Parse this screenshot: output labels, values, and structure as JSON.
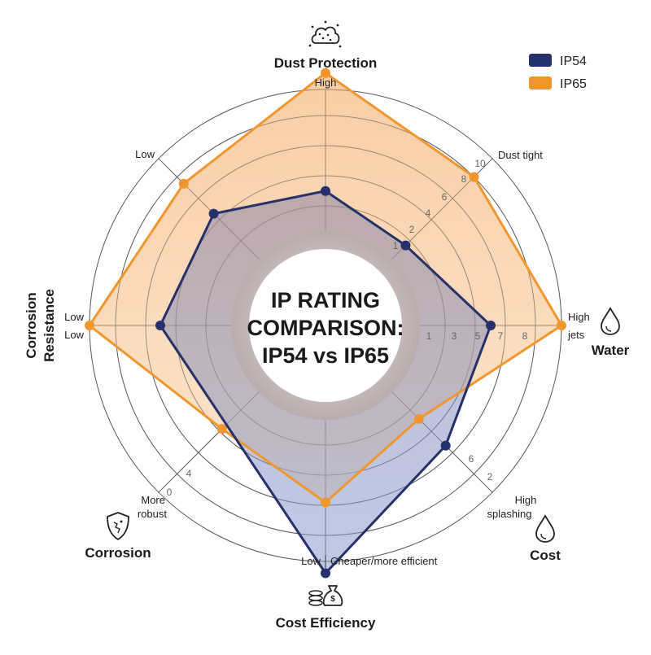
{
  "chart_data": {
    "type": "radar",
    "title_lines": [
      "IP RATING",
      "COMPARISON:",
      "IP54 vs IP65"
    ],
    "rings": 5,
    "axes": [
      {
        "key": "dust",
        "title_lines": [
          "Dust Protection"
        ],
        "icon": "dust-cloud-icon"
      },
      {
        "key": "water",
        "title_lines": [
          "Water"
        ],
        "icon": "water-drop-icon"
      },
      {
        "key": "cost",
        "title_lines": [
          "Cost"
        ],
        "icon": "water-drop-icon"
      },
      {
        "key": "cost_efficiency",
        "title_lines": [
          "Cost Efficiency"
        ],
        "icon": "money-bag-coins-icon"
      },
      {
        "key": "corrosion",
        "title_lines": [
          "Corrosion"
        ],
        "icon": "shield-icon"
      },
      {
        "key": "corrosion_resistance",
        "title_lines": [
          "Corrosion",
          "Resistance"
        ],
        "icon": ""
      }
    ],
    "spoke_labels": {
      "high": "High",
      "dust_tight": "Dust tight",
      "high_jets": [
        "High",
        "jets"
      ],
      "high_splashing": [
        "High",
        "splashing"
      ],
      "low_cost": "Low",
      "cheaper": "Cheaper/more efficient",
      "more_robust": [
        "More",
        "robust"
      ],
      "low_left": [
        "Low",
        "Low"
      ],
      "low_upper_left": "Low"
    },
    "tick_labels": {
      "upper_right": [
        "1",
        "2",
        "4",
        "6",
        "8",
        "10"
      ],
      "right": [
        "1",
        "3",
        "5",
        "7",
        "8"
      ],
      "lower_right": [
        "6",
        "2"
      ],
      "lower_left": [
        "4",
        "0"
      ]
    },
    "series": [
      {
        "name": "IP54",
        "color": "#26306b",
        "points": [
          {
            "angle": 0,
            "r": 0.57
          },
          {
            "angle": 45,
            "r": 0.48
          },
          {
            "angle": 90,
            "r": 0.7
          },
          {
            "angle": 135,
            "r": 0.72
          },
          {
            "angle": 180,
            "r": 1.05
          },
          {
            "angle": 270,
            "r": 0.7
          },
          {
            "angle": 315,
            "r": 0.67
          }
        ]
      },
      {
        "name": "IP65",
        "color": "#f0962f",
        "points": [
          {
            "angle": 0,
            "r": 1.07
          },
          {
            "angle": 45,
            "r": 0.89
          },
          {
            "angle": 90,
            "r": 1.0
          },
          {
            "angle": 135,
            "r": 0.56
          },
          {
            "angle": 180,
            "r": 0.75
          },
          {
            "angle": 225,
            "r": 0.62
          },
          {
            "angle": 270,
            "r": 1.0
          },
          {
            "angle": 315,
            "r": 0.85
          }
        ]
      }
    ],
    "legend_position": "top-right"
  }
}
